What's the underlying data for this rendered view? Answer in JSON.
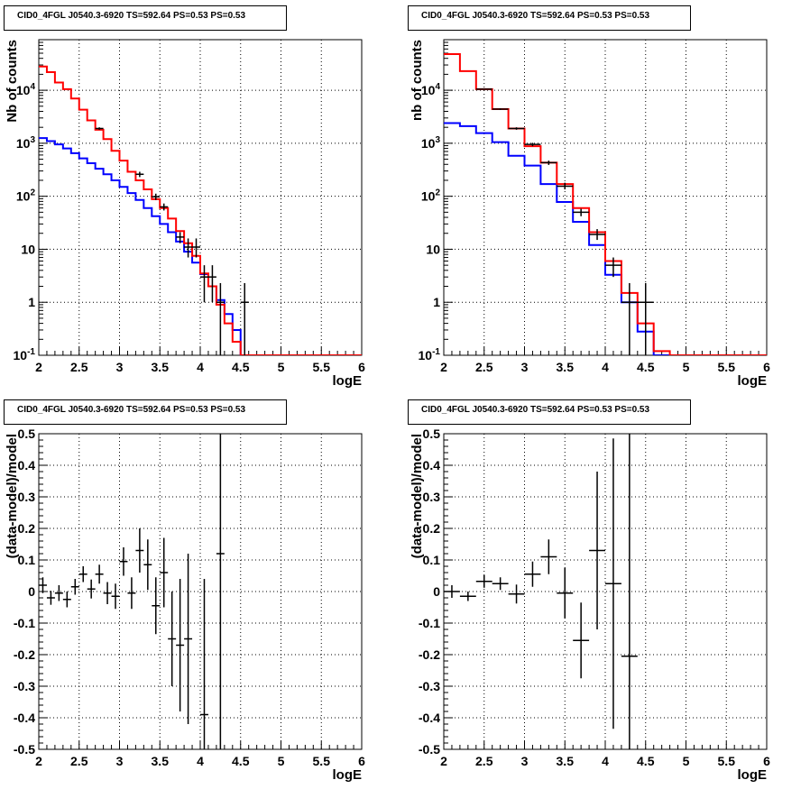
{
  "panel_titles": [
    "CID0_4FGL J0540.3-6920 TS=592.64 PS=0.53 PS=0.53",
    "CID0_4FGL J0540.3-6920 TS=592.64 PS=0.53 PS=0.53",
    "CID0_4FGL J0540.3-6920 TS=592.64 PS=0.53 PS=0.53",
    "CID0_4FGL J0540.3-6920 TS=592.64 PS=0.53 PS=0.53"
  ],
  "colors": {
    "data": "#000000",
    "model_total": "#ff0000",
    "model_bkg": "#0000ff",
    "grid": "#000000"
  },
  "chart_data": [
    {
      "type": "line",
      "title": "CID0_4FGL J0540.3-6920 TS=592.64 PS=0.53 PS=0.53",
      "xlabel": "logE",
      "ylabel": "Nb of counts",
      "xlim": [
        2,
        6
      ],
      "ylim": [
        0.1,
        90000
      ],
      "yscale": "log",
      "grid": true,
      "xticks": [
        "2",
        "2.5",
        "3",
        "3.5",
        "4",
        "4.5",
        "5",
        "5.5",
        "6"
      ],
      "yticks": [
        {
          "v": 0.1,
          "l": "10^-1"
        },
        {
          "v": 1,
          "l": "1"
        },
        {
          "v": 10,
          "l": "10"
        },
        {
          "v": 100,
          "l": "10^2"
        },
        {
          "v": 1000,
          "l": "10^3"
        },
        {
          "v": 10000,
          "l": "10^4"
        }
      ],
      "bin_edges": [
        2.0,
        2.1,
        2.2,
        2.3,
        2.4,
        2.5,
        2.6,
        2.7,
        2.8,
        2.9,
        3.0,
        3.1,
        3.2,
        3.3,
        3.4,
        3.5,
        3.6,
        3.7,
        3.8,
        3.9,
        4.0,
        4.1,
        4.2,
        4.3,
        4.4,
        4.5,
        4.6,
        4.7,
        4.8,
        4.9,
        5.0,
        5.1,
        5.2,
        5.3,
        5.4,
        5.5,
        5.6,
        5.7,
        5.8,
        5.9,
        6.0
      ],
      "model_total": [
        28000,
        22000,
        14000,
        10500,
        7000,
        4300,
        2700,
        1800,
        1200,
        720,
        470,
        290,
        200,
        135,
        88,
        60,
        38,
        22,
        13,
        7.5,
        3.5,
        2,
        0.9,
        0.4,
        0.18,
        0.1,
        0.1,
        0.1,
        0.1,
        0.1,
        0.1,
        0.1,
        0.1,
        0.1,
        0.1,
        0.1,
        0.1,
        0.1,
        0.1,
        0.1
      ],
      "model_bkg": [
        1250,
        1100,
        950,
        800,
        650,
        520,
        420,
        330,
        260,
        200,
        150,
        115,
        85,
        60,
        42,
        30,
        21,
        14,
        9,
        5.6,
        3.4,
        2,
        1.1,
        0.6,
        0.3,
        0.1,
        0.1,
        0.1,
        0.1,
        0.1,
        0.1,
        0.1,
        0.1,
        0.1,
        0.1,
        0.1,
        0.1,
        0.1,
        0.1,
        0.1
      ],
      "data_points": [
        {
          "x": 2.75,
          "y": 1900,
          "lo": 1800,
          "hi": 2000
        },
        {
          "x": 3.25,
          "y": 260,
          "lo": 230,
          "hi": 290
        },
        {
          "x": 3.45,
          "y": 98,
          "lo": 85,
          "hi": 112
        },
        {
          "x": 3.55,
          "y": 63,
          "lo": 54,
          "hi": 73
        },
        {
          "x": 3.75,
          "y": 17,
          "lo": 13,
          "hi": 21
        },
        {
          "x": 3.85,
          "y": 11,
          "lo": 7,
          "hi": 16
        },
        {
          "x": 3.95,
          "y": 11,
          "lo": 7,
          "hi": 16
        },
        {
          "x": 4.05,
          "y": 3,
          "lo": 1,
          "hi": 5
        },
        {
          "x": 4.15,
          "y": 3,
          "lo": 1,
          "hi": 5
        },
        {
          "x": 4.25,
          "y": 1,
          "lo": 0.1,
          "hi": 2.3
        },
        {
          "x": 4.55,
          "y": 1,
          "lo": 0.1,
          "hi": 2.3
        }
      ]
    },
    {
      "type": "line",
      "title": "CID0_4FGL J0540.3-6920 TS=592.64 PS=0.53 PS=0.53",
      "xlabel": "logE",
      "ylabel": "nb of counts",
      "xlim": [
        2,
        6
      ],
      "ylim": [
        0.1,
        90000
      ],
      "yscale": "log",
      "grid": true,
      "xticks": [
        "2",
        "2.5",
        "3",
        "3.5",
        "4",
        "4.5",
        "5",
        "5.5",
        "6"
      ],
      "yticks": [
        {
          "v": 0.1,
          "l": "10^-1"
        },
        {
          "v": 1,
          "l": "1"
        },
        {
          "v": 10,
          "l": "10"
        },
        {
          "v": 100,
          "l": "10^2"
        },
        {
          "v": 1000,
          "l": "10^3"
        },
        {
          "v": 10000,
          "l": "10^4"
        }
      ],
      "bin_edges": [
        2.0,
        2.2,
        2.4,
        2.6,
        2.8,
        3.0,
        3.2,
        3.4,
        3.6,
        3.8,
        4.0,
        4.2,
        4.4,
        4.6,
        4.8,
        5.0,
        5.2,
        5.4,
        5.6,
        5.8,
        6.0
      ],
      "model_total": [
        48000,
        23000,
        10500,
        4400,
        1900,
        880,
        430,
        170,
        60,
        21,
        6,
        1.5,
        0.4,
        0.12,
        0.1,
        0.1,
        0.1,
        0.1,
        0.1,
        0.1
      ],
      "model_bkg": [
        2400,
        2100,
        1550,
        1050,
        580,
        380,
        170,
        78,
        33,
        12,
        3.3,
        1,
        0.28,
        0.1,
        0.1,
        0.1,
        0.1,
        0.1,
        0.1,
        0.1
      ],
      "data_points": [
        {
          "x": 2.5,
          "y": 10500,
          "lo": 10300,
          "hi": 10700
        },
        {
          "x": 2.7,
          "y": 4400,
          "lo": 4250,
          "hi": 4550
        },
        {
          "x": 2.9,
          "y": 1900,
          "lo": 1800,
          "hi": 2000
        },
        {
          "x": 3.1,
          "y": 950,
          "lo": 880,
          "hi": 1020
        },
        {
          "x": 3.3,
          "y": 430,
          "lo": 390,
          "hi": 470
        },
        {
          "x": 3.5,
          "y": 155,
          "lo": 135,
          "hi": 180
        },
        {
          "x": 3.7,
          "y": 50,
          "lo": 42,
          "hi": 58
        },
        {
          "x": 3.9,
          "y": 19,
          "lo": 15,
          "hi": 24
        },
        {
          "x": 4.1,
          "y": 5,
          "lo": 3,
          "hi": 7
        },
        {
          "x": 4.3,
          "y": 1,
          "lo": 0.1,
          "hi": 2.3
        },
        {
          "x": 4.5,
          "y": 1,
          "lo": 0.1,
          "hi": 2.3
        }
      ]
    },
    {
      "type": "scatter",
      "title": "CID0_4FGL J0540.3-6920 TS=592.64 PS=0.53 PS=0.53",
      "xlabel": "logE",
      "ylabel": "(data-model)/model",
      "xlim": [
        2,
        6
      ],
      "ylim": [
        -0.5,
        0.5
      ],
      "grid": true,
      "xticks": [
        "2",
        "2.5",
        "3",
        "3.5",
        "4",
        "4.5",
        "5",
        "5.5",
        "6"
      ],
      "yticks": [
        {
          "v": -0.5,
          "l": "-0.5"
        },
        {
          "v": -0.4,
          "l": "-0.4"
        },
        {
          "v": -0.3,
          "l": "-0.3"
        },
        {
          "v": -0.2,
          "l": "-0.2"
        },
        {
          "v": -0.1,
          "l": "-0.1"
        },
        {
          "v": 0,
          "l": "0"
        },
        {
          "v": 0.1,
          "l": "0.1"
        },
        {
          "v": 0.2,
          "l": "0.2"
        },
        {
          "v": 0.3,
          "l": "0.3"
        },
        {
          "v": 0.4,
          "l": "0.4"
        },
        {
          "v": 0.5,
          "l": "0.5"
        }
      ],
      "xerr": 0.05,
      "points": [
        {
          "x": 2.05,
          "y": 0.02,
          "e": 0.025
        },
        {
          "x": 2.15,
          "y": -0.02,
          "e": 0.022
        },
        {
          "x": 2.25,
          "y": -0.005,
          "e": 0.025
        },
        {
          "x": 2.35,
          "y": -0.025,
          "e": 0.025
        },
        {
          "x": 2.45,
          "y": 0.015,
          "e": 0.025
        },
        {
          "x": 2.55,
          "y": 0.055,
          "e": 0.025
        },
        {
          "x": 2.65,
          "y": 0.008,
          "e": 0.03
        },
        {
          "x": 2.75,
          "y": 0.055,
          "e": 0.03
        },
        {
          "x": 2.85,
          "y": -0.005,
          "e": 0.035
        },
        {
          "x": 2.95,
          "y": -0.015,
          "e": 0.04
        },
        {
          "x": 3.05,
          "y": 0.095,
          "e": 0.045
        },
        {
          "x": 3.15,
          "y": -0.005,
          "e": 0.05
        },
        {
          "x": 3.25,
          "y": 0.13,
          "e": 0.07
        },
        {
          "x": 3.35,
          "y": 0.085,
          "e": 0.08
        },
        {
          "x": 3.45,
          "y": -0.045,
          "e": 0.09
        },
        {
          "x": 3.55,
          "y": 0.06,
          "e": 0.11
        },
        {
          "x": 3.65,
          "y": -0.15,
          "e": 0.15
        },
        {
          "x": 3.75,
          "y": -0.17,
          "e": 0.21
        },
        {
          "x": 3.85,
          "y": -0.15,
          "e": 0.27
        },
        {
          "x": 4.05,
          "y": -0.39,
          "e": 0.43
        },
        {
          "x": 4.25,
          "y": 0.12,
          "e": 0.9
        }
      ]
    },
    {
      "type": "scatter",
      "title": "CID0_4FGL J0540.3-6920 TS=592.64 PS=0.53 PS=0.53",
      "xlabel": "logE",
      "ylabel": "(data-model)/model",
      "xlim": [
        2,
        6
      ],
      "ylim": [
        -0.5,
        0.5
      ],
      "grid": true,
      "xticks": [
        "2",
        "2.5",
        "3",
        "3.5",
        "4",
        "4.5",
        "5",
        "5.5",
        "6"
      ],
      "yticks": [
        {
          "v": -0.5,
          "l": "-0.5"
        },
        {
          "v": -0.4,
          "l": "-0.4"
        },
        {
          "v": -0.3,
          "l": "-0.3"
        },
        {
          "v": -0.2,
          "l": "-0.2"
        },
        {
          "v": -0.1,
          "l": "-0.1"
        },
        {
          "v": 0,
          "l": "0"
        },
        {
          "v": 0.1,
          "l": "0.1"
        },
        {
          "v": 0.2,
          "l": "0.2"
        },
        {
          "v": 0.3,
          "l": "0.3"
        },
        {
          "v": 0.4,
          "l": "0.4"
        },
        {
          "v": 0.5,
          "l": "0.5"
        }
      ],
      "xerr": 0.1,
      "points": [
        {
          "x": 2.1,
          "y": 0.0,
          "e": 0.02
        },
        {
          "x": 2.3,
          "y": -0.015,
          "e": 0.015
        },
        {
          "x": 2.5,
          "y": 0.032,
          "e": 0.02
        },
        {
          "x": 2.7,
          "y": 0.025,
          "e": 0.02
        },
        {
          "x": 2.9,
          "y": -0.008,
          "e": 0.03
        },
        {
          "x": 3.1,
          "y": 0.055,
          "e": 0.04
        },
        {
          "x": 3.3,
          "y": 0.11,
          "e": 0.055
        },
        {
          "x": 3.5,
          "y": -0.005,
          "e": 0.08
        },
        {
          "x": 3.7,
          "y": -0.155,
          "e": 0.12
        },
        {
          "x": 3.9,
          "y": 0.13,
          "e": 0.25
        },
        {
          "x": 4.1,
          "y": 0.025,
          "e": 0.46
        },
        {
          "x": 4.3,
          "y": -0.205,
          "e": 0.75
        }
      ]
    }
  ]
}
